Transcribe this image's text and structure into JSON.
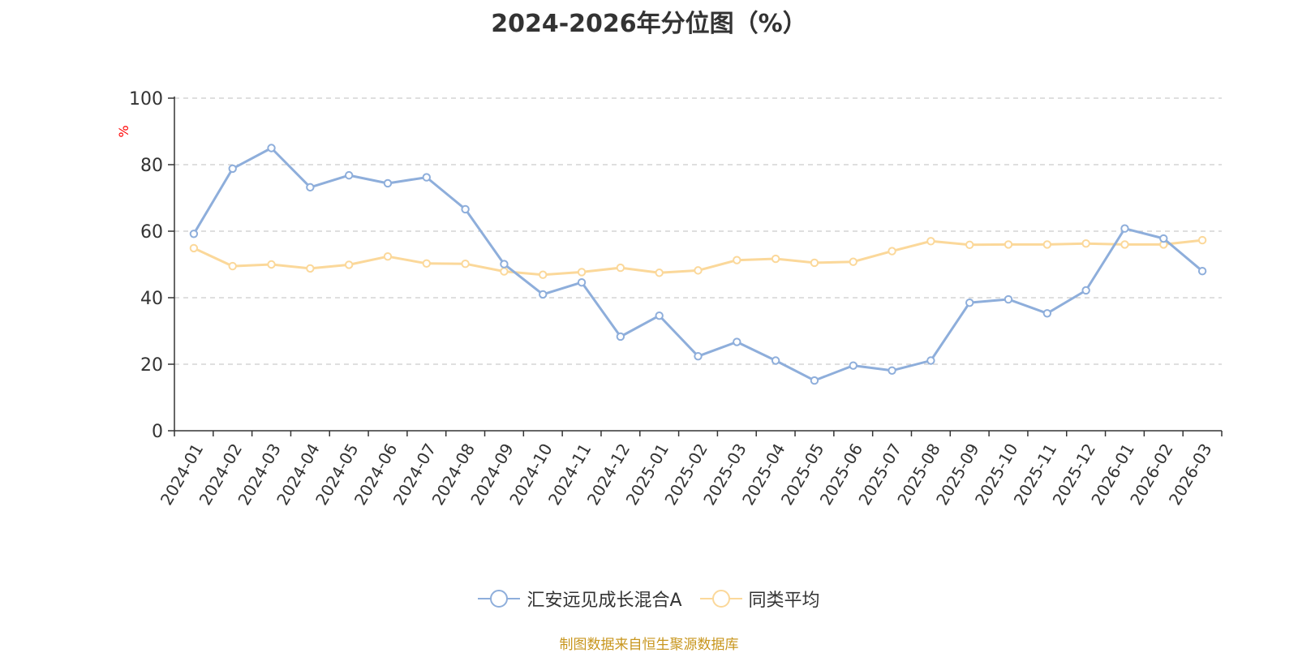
{
  "colors": {
    "series_fund": "#8eaedb",
    "series_avg": "#fbd89a",
    "unit_label": "#ff0000",
    "source_text": "#c8961e",
    "axis": "#333333",
    "grid": "#cccccc"
  },
  "chart_data": {
    "type": "line",
    "title": "2024-2026年分位图（%）",
    "ylabel": "%",
    "ylim": [
      0,
      100
    ],
    "yticks": [
      0,
      20,
      40,
      60,
      80,
      100
    ],
    "grid": "horizontal-dashed",
    "legend_position": "bottom-center",
    "categories": [
      "2024-01",
      "2024-02",
      "2024-03",
      "2024-04",
      "2024-05",
      "2024-06",
      "2024-07",
      "2024-08",
      "2024-09",
      "2024-10",
      "2024-11",
      "2024-12",
      "2025-01",
      "2025-02",
      "2025-03",
      "2025-04",
      "2025-05",
      "2025-06",
      "2025-07",
      "2025-08",
      "2025-09",
      "2025-10",
      "2025-11",
      "2025-12",
      "2026-01",
      "2026-02",
      "2026-03"
    ],
    "series": [
      {
        "name": "汇安远见成长混合A",
        "values": [
          59.2,
          78.8,
          85.0,
          73.2,
          76.8,
          74.4,
          76.2,
          66.6,
          50.1,
          41.0,
          44.6,
          28.3,
          34.6,
          22.4,
          26.7,
          21.1,
          15.1,
          19.6,
          18.1,
          21.1,
          38.5,
          39.5,
          35.3,
          42.2,
          60.8,
          57.8,
          48.0
        ]
      },
      {
        "name": "同类平均",
        "values": [
          54.9,
          49.5,
          50.0,
          48.8,
          49.9,
          52.4,
          50.3,
          50.2,
          47.9,
          46.9,
          47.7,
          49.0,
          47.5,
          48.2,
          51.3,
          51.7,
          50.5,
          50.8,
          54.0,
          57.0,
          55.9,
          56.0,
          56.0,
          56.3,
          56.0,
          56.0,
          57.3
        ]
      }
    ]
  },
  "source_text": "制图数据来自恒生聚源数据库"
}
